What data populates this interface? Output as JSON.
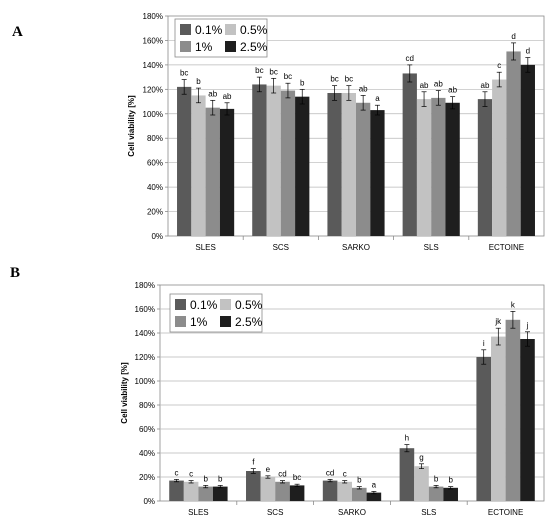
{
  "colors": {
    "s0": "#5a5a5a",
    "s1": "#c2c2c2",
    "s2": "#8c8c8c",
    "s3": "#1e1e1e"
  },
  "chart_data": [
    {
      "type": "bar",
      "panel": "A",
      "ylabel": "Cell viability [%]",
      "ylim": [
        0,
        180
      ],
      "yticks": [
        "0%",
        "20%",
        "40%",
        "60%",
        "80%",
        "100%",
        "120%",
        "140%",
        "160%",
        "180%"
      ],
      "categories": [
        "SLES",
        "SCS",
        "SARKO",
        "SLS",
        "ECTOINE"
      ],
      "legend_position": "top-left",
      "grid": true,
      "series": [
        {
          "name": "0.1%",
          "values": [
            122,
            124,
            117,
            133,
            112
          ],
          "errors": [
            6,
            6,
            6,
            7,
            6
          ],
          "labels": [
            "bc",
            "bc",
            "bc",
            "cd",
            "ab"
          ]
        },
        {
          "name": "0.5%",
          "values": [
            115,
            123,
            117,
            112,
            128
          ],
          "errors": [
            6,
            6,
            6,
            6,
            6
          ],
          "labels": [
            "b",
            "bc",
            "bc",
            "ab",
            "c"
          ]
        },
        {
          "name": "1%",
          "values": [
            105,
            119,
            109,
            113,
            151
          ],
          "errors": [
            6,
            6,
            6,
            6,
            7
          ],
          "labels": [
            "ab",
            "bc",
            "ab",
            "ab",
            "d"
          ]
        },
        {
          "name": "2.5%",
          "values": [
            104,
            114,
            103,
            109,
            140
          ],
          "errors": [
            5,
            6,
            4,
            5,
            6
          ],
          "labels": [
            "ab",
            "b",
            "a",
            "ab",
            "d"
          ]
        }
      ]
    },
    {
      "type": "bar",
      "panel": "B",
      "ylabel": "Cell viability [%]",
      "ylim": [
        0,
        180
      ],
      "yticks": [
        "0%",
        "20%",
        "40%",
        "60%",
        "80%",
        "100%",
        "120%",
        "140%",
        "160%",
        "180%"
      ],
      "categories": [
        "SLES",
        "SCS",
        "SARKO",
        "SLS",
        "ECTOINE"
      ],
      "legend_position": "top-left",
      "grid": true,
      "series": [
        {
          "name": "0.1%",
          "values": [
            17,
            25,
            17,
            44,
            120
          ],
          "errors": [
            1,
            2,
            1,
            3,
            6
          ],
          "labels": [
            "c",
            "f",
            "cd",
            "h",
            "i"
          ]
        },
        {
          "name": "0.5%",
          "values": [
            16,
            20,
            16,
            29,
            137
          ],
          "errors": [
            1,
            1,
            1,
            2,
            7
          ],
          "labels": [
            "c",
            "e",
            "c",
            "g",
            "jk"
          ]
        },
        {
          "name": "1%",
          "values": [
            12,
            16,
            11,
            12,
            151
          ],
          "errors": [
            1,
            1,
            1,
            1,
            7
          ],
          "labels": [
            "b",
            "cd",
            "b",
            "b",
            "k"
          ]
        },
        {
          "name": "2.5%",
          "values": [
            12,
            13,
            7,
            11,
            135
          ],
          "errors": [
            1,
            1,
            1,
            1,
            6
          ],
          "labels": [
            "b",
            "bc",
            "a",
            "b",
            "j"
          ]
        }
      ]
    }
  ]
}
